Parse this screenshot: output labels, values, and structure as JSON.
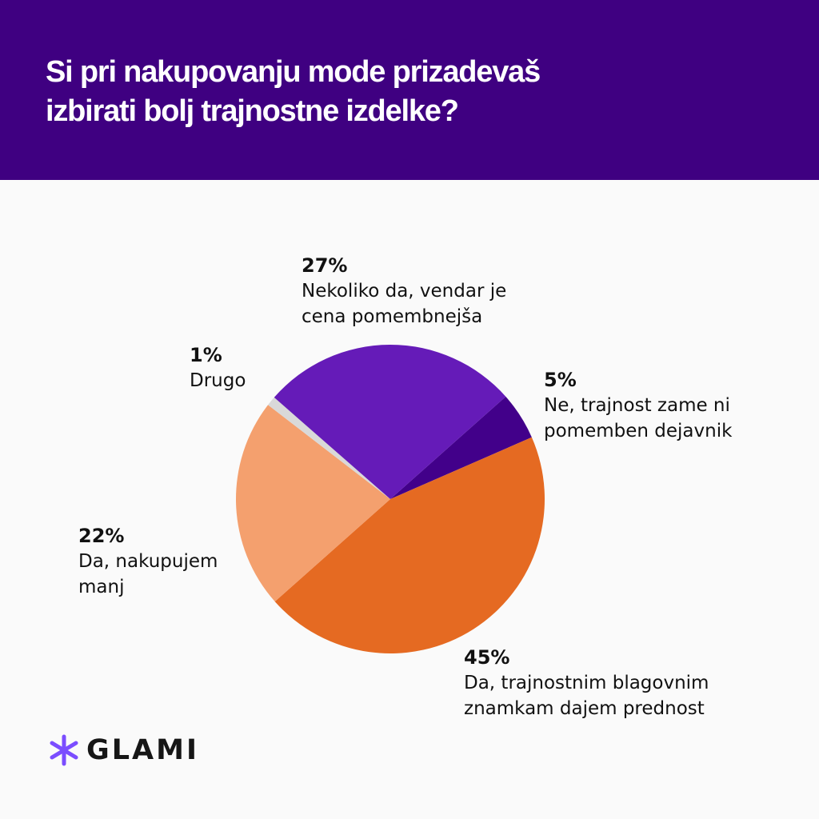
{
  "header": {
    "title_lines": [
      "Si pri nakupovanju mode prizadevaš",
      "izbirati bolj trajnostne izdelke?"
    ]
  },
  "chart_data": {
    "type": "pie",
    "title": "Si pri nakupovanju mode prizadevaš izbirati bolj trajnostne izdelke?",
    "start_angle_deg": 48.4,
    "slices": [
      {
        "pct_label": "5%",
        "value": 5,
        "label_lines": [
          "Ne, trajnost zame ni",
          "pomemben dejavnik"
        ],
        "color": "#42008a"
      },
      {
        "pct_label": "45%",
        "value": 45,
        "label_lines": [
          "Da, trajnostnim blagovnim",
          "znamkam dajem prednost"
        ],
        "color": "#e56a22"
      },
      {
        "pct_label": "22%",
        "value": 22,
        "label_lines": [
          "Da, nakupujem",
          "manj"
        ],
        "color": "#f4a06e"
      },
      {
        "pct_label": "1%",
        "value": 1,
        "label_lines": [
          "Drugo"
        ],
        "color": "#d9d9d9"
      },
      {
        "pct_label": "27%",
        "value": 27,
        "label_lines": [
          "Nekoliko da, vendar je",
          "cena pomembnejša"
        ],
        "color": "#651bb8"
      }
    ]
  },
  "logo": {
    "text": "GLAMI",
    "color": "#7b4dff"
  }
}
